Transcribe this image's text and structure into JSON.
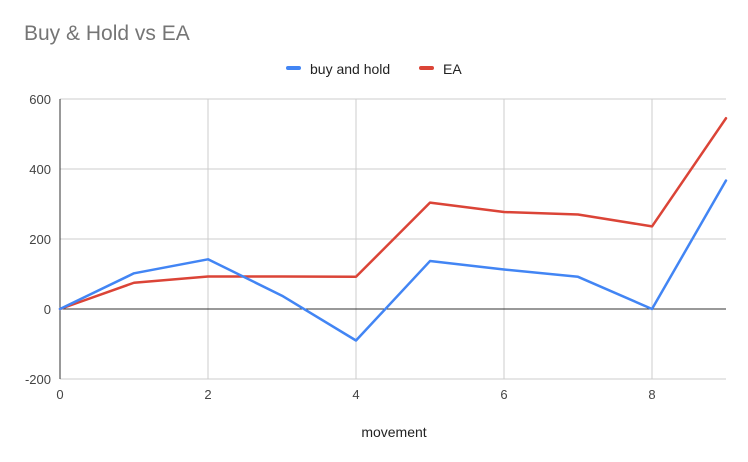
{
  "chart_data": {
    "type": "line",
    "title": "Buy & Hold vs EA",
    "xlabel": "movement",
    "ylabel": "",
    "xlim": [
      0,
      9
    ],
    "ylim": [
      -200,
      600
    ],
    "x_ticks": [
      "0",
      "2",
      "4",
      "6",
      "8"
    ],
    "y_ticks": [
      "600",
      "400",
      "200",
      "0",
      "-200"
    ],
    "x_tick_values": [
      0,
      2,
      4,
      6,
      8
    ],
    "y_tick_values": [
      600,
      400,
      200,
      0,
      -200
    ],
    "grid": true,
    "legend_position": "top",
    "x": [
      0,
      1,
      2,
      3,
      4,
      5,
      6,
      7,
      8,
      9
    ],
    "series": [
      {
        "name": "buy and hold",
        "color": "#4285f4",
        "values": [
          0,
          102,
          142,
          38,
          -90,
          137,
          113,
          92,
          0,
          367
        ]
      },
      {
        "name": "EA",
        "color": "#db4437",
        "values": [
          0,
          75,
          93,
          93,
          92,
          304,
          277,
          270,
          236,
          545
        ]
      }
    ]
  }
}
